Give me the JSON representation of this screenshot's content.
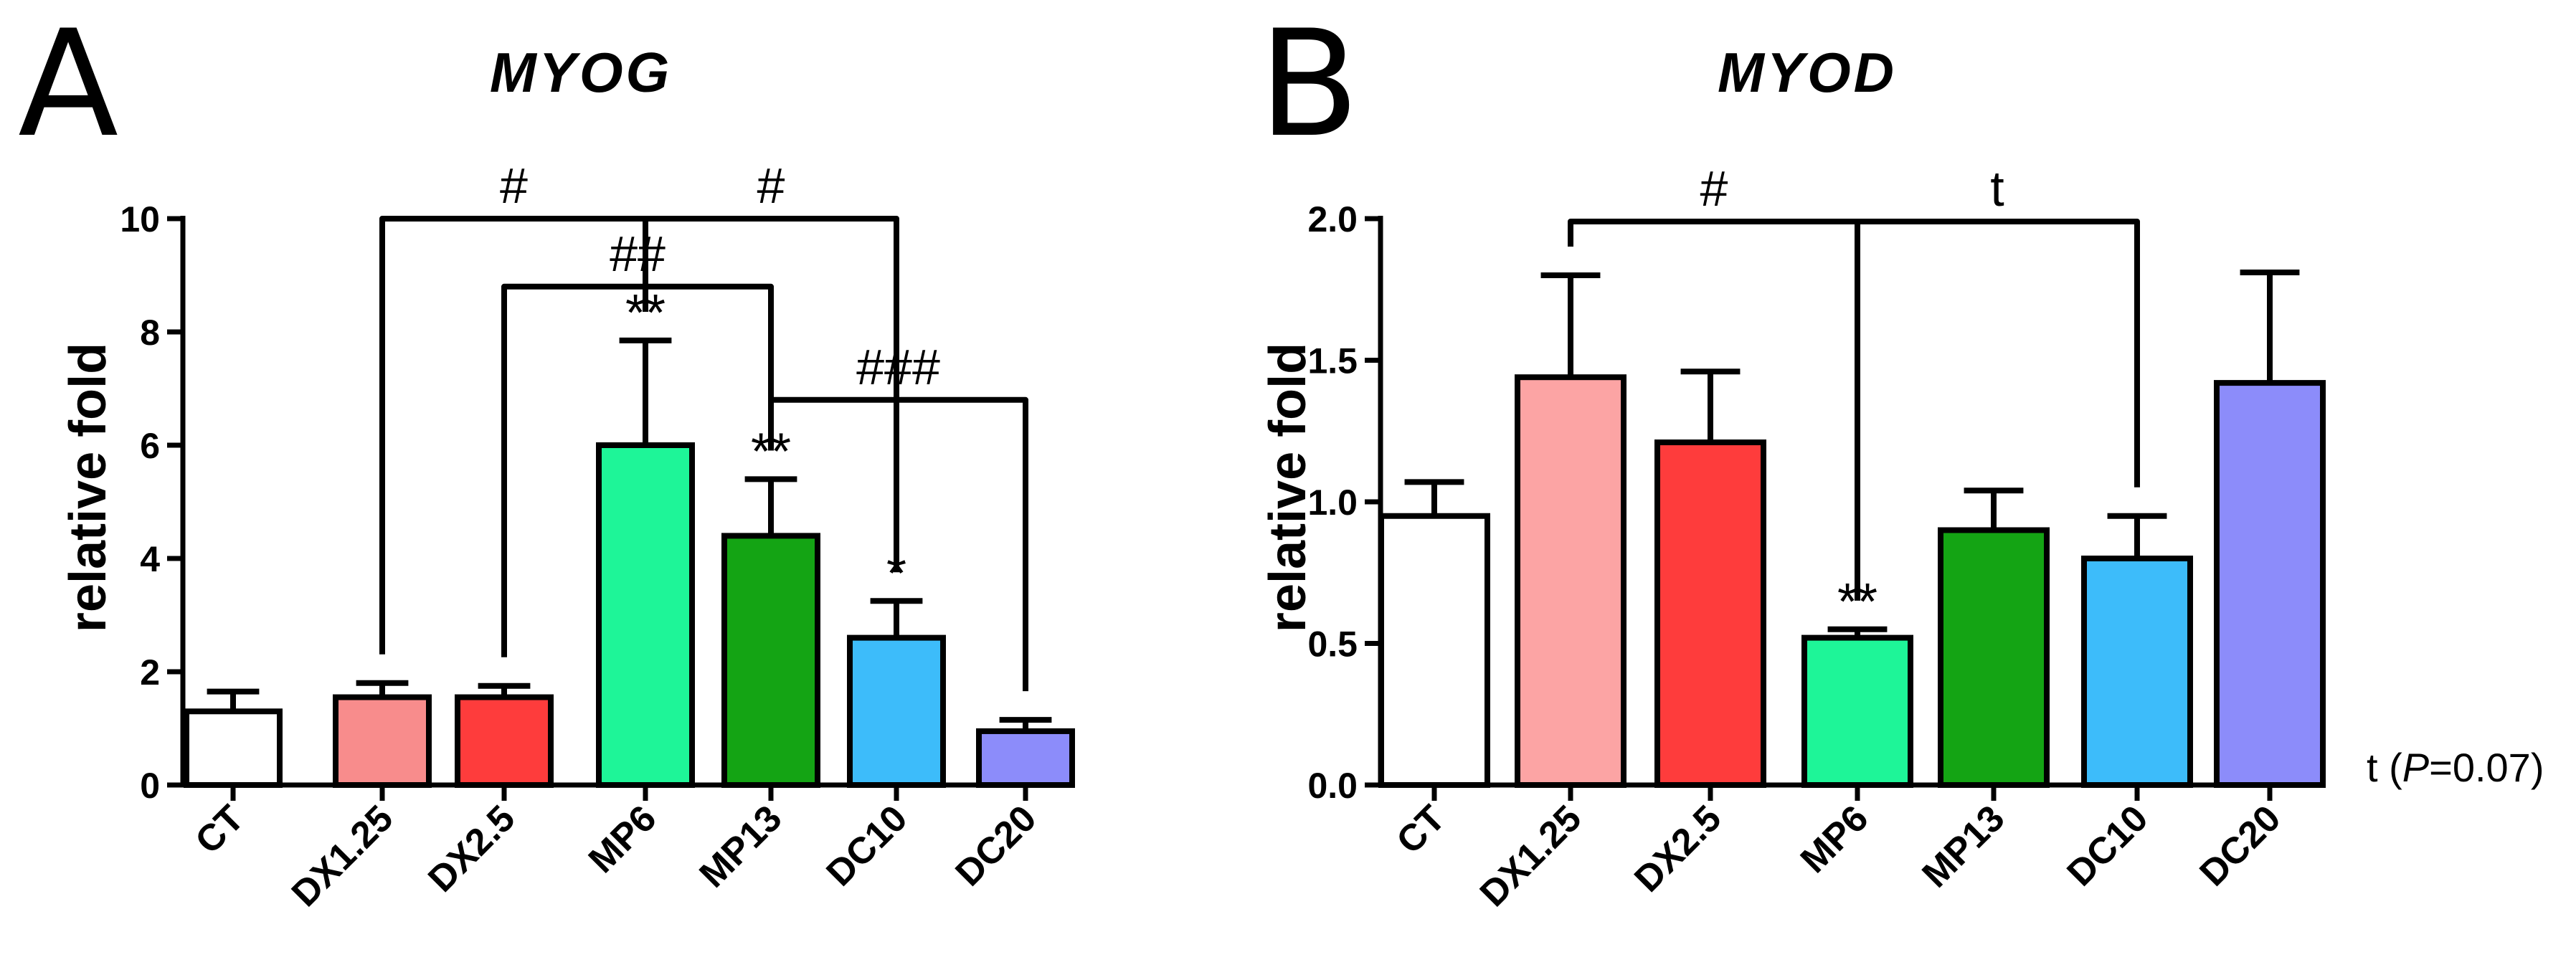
{
  "chart_data": [
    {
      "panel": "A",
      "type": "bar",
      "title": "MYOG",
      "ylabel": "relative fold",
      "xlabel": "",
      "ylim": [
        0,
        10
      ],
      "yticks": [
        0,
        2,
        4,
        6,
        8,
        10
      ],
      "ytick_labels": [
        "0",
        "2",
        "4",
        "6",
        "8",
        "10"
      ],
      "categories": [
        "CT",
        "DX1.25",
        "DX2.5",
        "MP6",
        "MP13",
        "DC10",
        "DC20"
      ],
      "values": [
        1.3,
        1.55,
        1.55,
        6.0,
        4.4,
        2.6,
        0.95
      ],
      "errors": [
        0.35,
        0.25,
        0.2,
        1.85,
        1.0,
        0.65,
        0.2
      ],
      "colors": [
        "#ffffff",
        "#f88c8c",
        "#fe3c3c",
        "#1ef598",
        "#14a414",
        "#3dbcfa",
        "#8c8cfa"
      ],
      "significance": [
        "",
        "",
        "",
        "**",
        "**",
        "*",
        ""
      ],
      "brackets": [
        {
          "from": 1,
          "to": 3,
          "label": "#",
          "level": 10.0
        },
        {
          "from": 3,
          "to": 5,
          "label": "#",
          "level": 10.0
        },
        {
          "from": 2,
          "to": 4,
          "label": "##",
          "level": 8.8
        },
        {
          "from": 4,
          "to": 6,
          "label": "###",
          "level": 6.8
        }
      ]
    },
    {
      "panel": "B",
      "type": "bar",
      "title": "MYOD",
      "ylabel": "relative fold",
      "xlabel": "",
      "ylim": [
        0,
        2.0
      ],
      "yticks": [
        0,
        0.5,
        1.0,
        1.5,
        2.0
      ],
      "ytick_labels": [
        "0.0",
        "0.5",
        "1.0",
        "1.5",
        "2.0"
      ],
      "categories": [
        "CT",
        "DX1.25",
        "DX2.5",
        "MP6",
        "MP13",
        "DC10",
        "DC20"
      ],
      "values": [
        0.95,
        1.44,
        1.21,
        0.52,
        0.9,
        0.8,
        1.42
      ],
      "errors": [
        0.12,
        0.36,
        0.25,
        0.03,
        0.14,
        0.15,
        0.39
      ],
      "colors": [
        "#ffffff",
        "#fca4a4",
        "#fe3c3c",
        "#1ef598",
        "#14a414",
        "#3dbcfa",
        "#8c8cfa"
      ],
      "significance": [
        "",
        "",
        "",
        "**",
        "",
        "",
        ""
      ],
      "brackets": [
        {
          "from": 1,
          "to": 3,
          "label": "#",
          "level": 1.99
        },
        {
          "from": 3,
          "to": 5,
          "label": "t",
          "level": 1.99
        }
      ],
      "footnote_prefix": "t (",
      "footnote_italic": "P",
      "footnote_suffix": "=0.07)"
    }
  ]
}
